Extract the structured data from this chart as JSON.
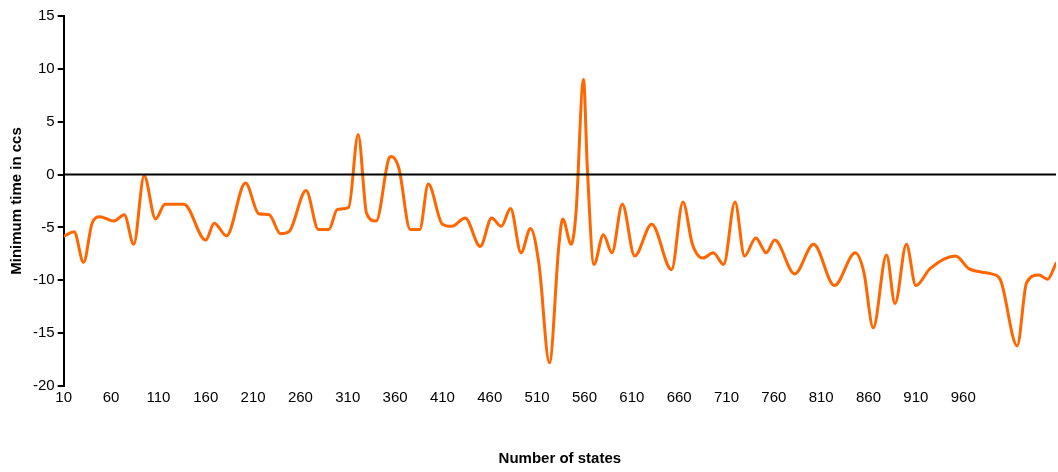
{
  "chart_data": {
    "type": "line",
    "xlabel": "Number of states",
    "ylabel": "Minimum time in ccs",
    "xlim": [
      10,
      1058
    ],
    "xticks": [
      10,
      60,
      110,
      160,
      210,
      260,
      310,
      360,
      410,
      460,
      510,
      560,
      610,
      660,
      710,
      760,
      810,
      860,
      910,
      960
    ],
    "ylim": [
      -20,
      15
    ],
    "yticks": [
      -20,
      -15,
      -10,
      -5,
      0,
      5,
      10,
      15
    ],
    "grid": false,
    "legend": false,
    "marker": "none",
    "line_style": "solid",
    "ref_lines": [
      {
        "axis": "y",
        "value": 0,
        "color": "#000000"
      }
    ],
    "series": [
      {
        "color": "#ff6600",
        "x": [
          11,
          21,
          31,
          40,
          48,
          63,
          74,
          84,
          95,
          107,
          117,
          137,
          160,
          169,
          182,
          202,
          216,
          227,
          239,
          248,
          266,
          279,
          290,
          299,
          311,
          321,
          330,
          340,
          353,
          356,
          364,
          376,
          386,
          395,
          410,
          420,
          434,
          450,
          462,
          472,
          482,
          493,
          503,
          512,
          523,
          533,
          537,
          546,
          551,
          559,
          563,
          570,
          580,
          589,
          600,
          613,
          631,
          652,
          664,
          674,
          685,
          696,
          707,
          719,
          729,
          741,
          752,
          761,
          782,
          802,
          824,
          846,
          855,
          865,
          879,
          888,
          900,
          910,
          925,
          952,
          966,
          990,
          999,
          1017,
          1027,
          1040,
          1049,
          1058
        ],
        "values": [
          -5.8,
          -5.4,
          -8.3,
          -4.6,
          -4.0,
          -4.4,
          -3.8,
          -6.6,
          -0.1,
          -4.2,
          -2.8,
          -2.8,
          -6.2,
          -4.6,
          -5.8,
          -0.8,
          -3.7,
          -3.8,
          -5.6,
          -5.4,
          -1.5,
          -5.2,
          -5.2,
          -3.3,
          -3.1,
          3.8,
          -3.7,
          -4.4,
          1.4,
          1.7,
          0.6,
          -5.2,
          -5.2,
          -0.9,
          -4.7,
          -4.9,
          -4.1,
          -6.8,
          -4.1,
          -4.9,
          -3.2,
          -7.4,
          -5.1,
          -8.5,
          -17.8,
          -6.7,
          -4.2,
          -6.6,
          -3.7,
          9.0,
          0.7,
          -8.5,
          -5.7,
          -7.4,
          -2.8,
          -7.7,
          -4.7,
          -9.0,
          -2.6,
          -6.6,
          -7.9,
          -7.4,
          -8.5,
          -2.6,
          -7.7,
          -6.0,
          -7.4,
          -6.2,
          -9.4,
          -6.6,
          -10.5,
          -7.4,
          -9.2,
          -14.5,
          -7.6,
          -12.2,
          -6.6,
          -10.5,
          -8.9,
          -7.7,
          -8.9,
          -9.4,
          -9.9,
          -16.2,
          -10.2,
          -9.5,
          -9.9,
          -8.4
        ]
      }
    ]
  }
}
